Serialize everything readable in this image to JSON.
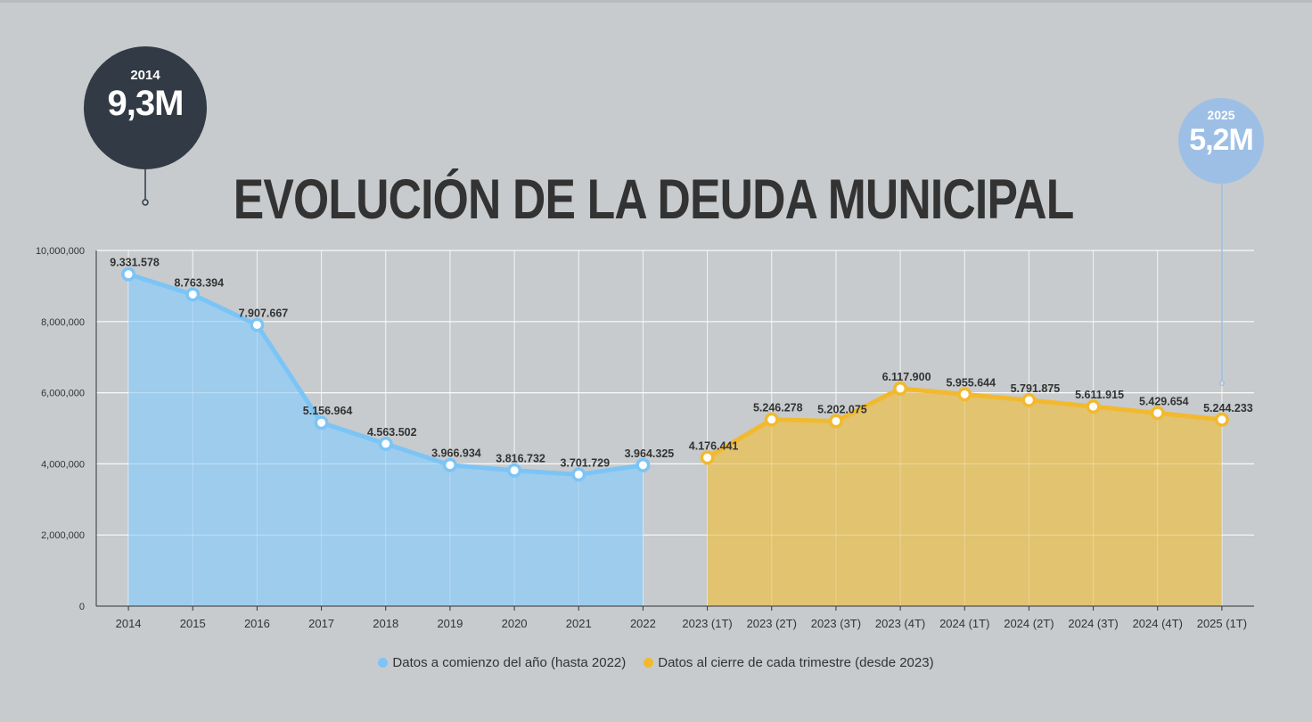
{
  "title": "EVOLUCIÓN DE LA DEUDA MUNICIPAL",
  "bubble_left": {
    "year": "2014",
    "value": "9,3M",
    "color": "#313a45"
  },
  "bubble_right": {
    "year": "2025",
    "value": "5,2M",
    "color": "#9dbfe6"
  },
  "legend": [
    {
      "label": "Datos a comienzo del año (hasta 2022)",
      "color": "#7cc4f6"
    },
    {
      "label": "Datos al cierre de cada trimestre (desde 2023)",
      "color": "#f2b92e"
    }
  ],
  "chart_data": {
    "type": "area",
    "categories": [
      "2014",
      "2015",
      "2016",
      "2017",
      "2018",
      "2019",
      "2020",
      "2021",
      "2022",
      "2023 (1T)",
      "2023 (2T)",
      "2023 (3T)",
      "2023 (4T)",
      "2024 (1T)",
      "2024 (2T)",
      "2024 (3T)",
      "2024 (4T)",
      "2025 (1T)"
    ],
    "series": [
      {
        "name": "Datos a comienzo del año (hasta 2022)",
        "color": "#7cc4f6",
        "fill": "#9bcbee",
        "values": [
          9331578,
          8763394,
          7907667,
          5156964,
          4563502,
          3966934,
          3816732,
          3701729,
          3964325,
          null,
          null,
          null,
          null,
          null,
          null,
          null,
          null,
          null
        ],
        "labels": [
          "9.331.578",
          "8.763.394",
          "7.907.667",
          "5.156.964",
          "4.563.502",
          "3.966.934",
          "3.816.732",
          "3.701.729",
          "3.964.325",
          null,
          null,
          null,
          null,
          null,
          null,
          null,
          null,
          null
        ]
      },
      {
        "name": "Datos al cierre de cada trimestre (desde 2023)",
        "color": "#f2b92e",
        "fill": "#e3c26a",
        "values": [
          null,
          null,
          null,
          null,
          null,
          null,
          null,
          null,
          null,
          4176441,
          5246278,
          5202075,
          6117900,
          5955644,
          5791875,
          5611915,
          5429654,
          5244233
        ],
        "labels": [
          null,
          null,
          null,
          null,
          null,
          null,
          null,
          null,
          null,
          "4.176.441",
          "5.246.278",
          "5.202.075",
          "6.117.900",
          "5.955.644",
          "5.791.875",
          "5.611.915",
          "5.429.654",
          "5.244.233"
        ]
      }
    ],
    "yticks": [
      0,
      2000000,
      4000000,
      6000000,
      8000000,
      10000000
    ],
    "ytick_labels": [
      "0",
      "2,000,000",
      "4,000,000",
      "6,000,000",
      "8,000,000",
      "10,000,000"
    ],
    "ylim": [
      0,
      10000000
    ],
    "grid": true,
    "legend_position": "bottom"
  }
}
